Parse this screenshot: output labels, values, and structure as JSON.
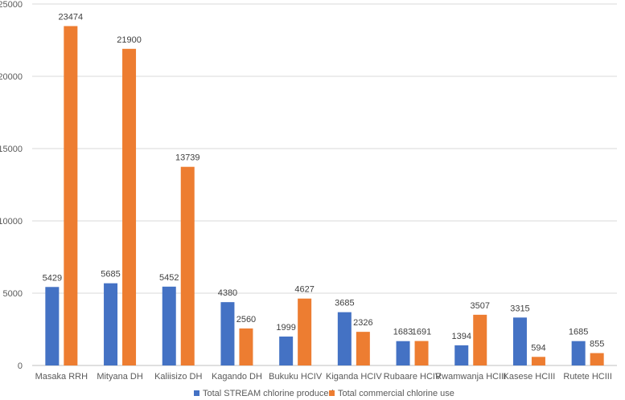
{
  "chart_data": {
    "type": "bar",
    "categories": [
      "Masaka RRH",
      "Mityana DH",
      "Kaliisizo DH",
      "Kagando DH",
      "Bukuku HCIV",
      "Kiganda HCIV",
      "Rubaare HCIV",
      "Rwamwanja HCIII",
      "Kasese HCIII",
      "Rutete HCIII"
    ],
    "series": [
      {
        "name": "Total STREAM chlorine produced",
        "color": "#4472C4",
        "values": [
          5429,
          5685,
          5452,
          4380,
          1999,
          3685,
          1683,
          1394,
          3315,
          1685
        ],
        "labels": [
          "5429",
          "5685",
          "5452",
          "4380",
          "1999",
          "3685",
          "1683",
          "1394",
          "3315",
          "1685"
        ]
      },
      {
        "name": "Total commercial chlorine use",
        "color": "#ED7D31",
        "values": [
          23474,
          21900,
          13739,
          2560,
          4627,
          2326,
          1691,
          3507,
          594,
          855
        ],
        "labels": [
          "23474",
          "21900",
          "13739",
          "2560",
          "4627",
          "2326",
          "1691",
          "3507",
          "594",
          "855"
        ]
      }
    ],
    "yticks": [
      0,
      5000,
      10000,
      15000,
      20000,
      25000
    ],
    "ytick_labels": [
      "0",
      "5000",
      "10000",
      "15000",
      "20000",
      "25000"
    ],
    "ylim": [
      0,
      25000
    ],
    "grid": true,
    "legend": "bottom",
    "title": "",
    "xlabel": "",
    "ylabel": ""
  }
}
